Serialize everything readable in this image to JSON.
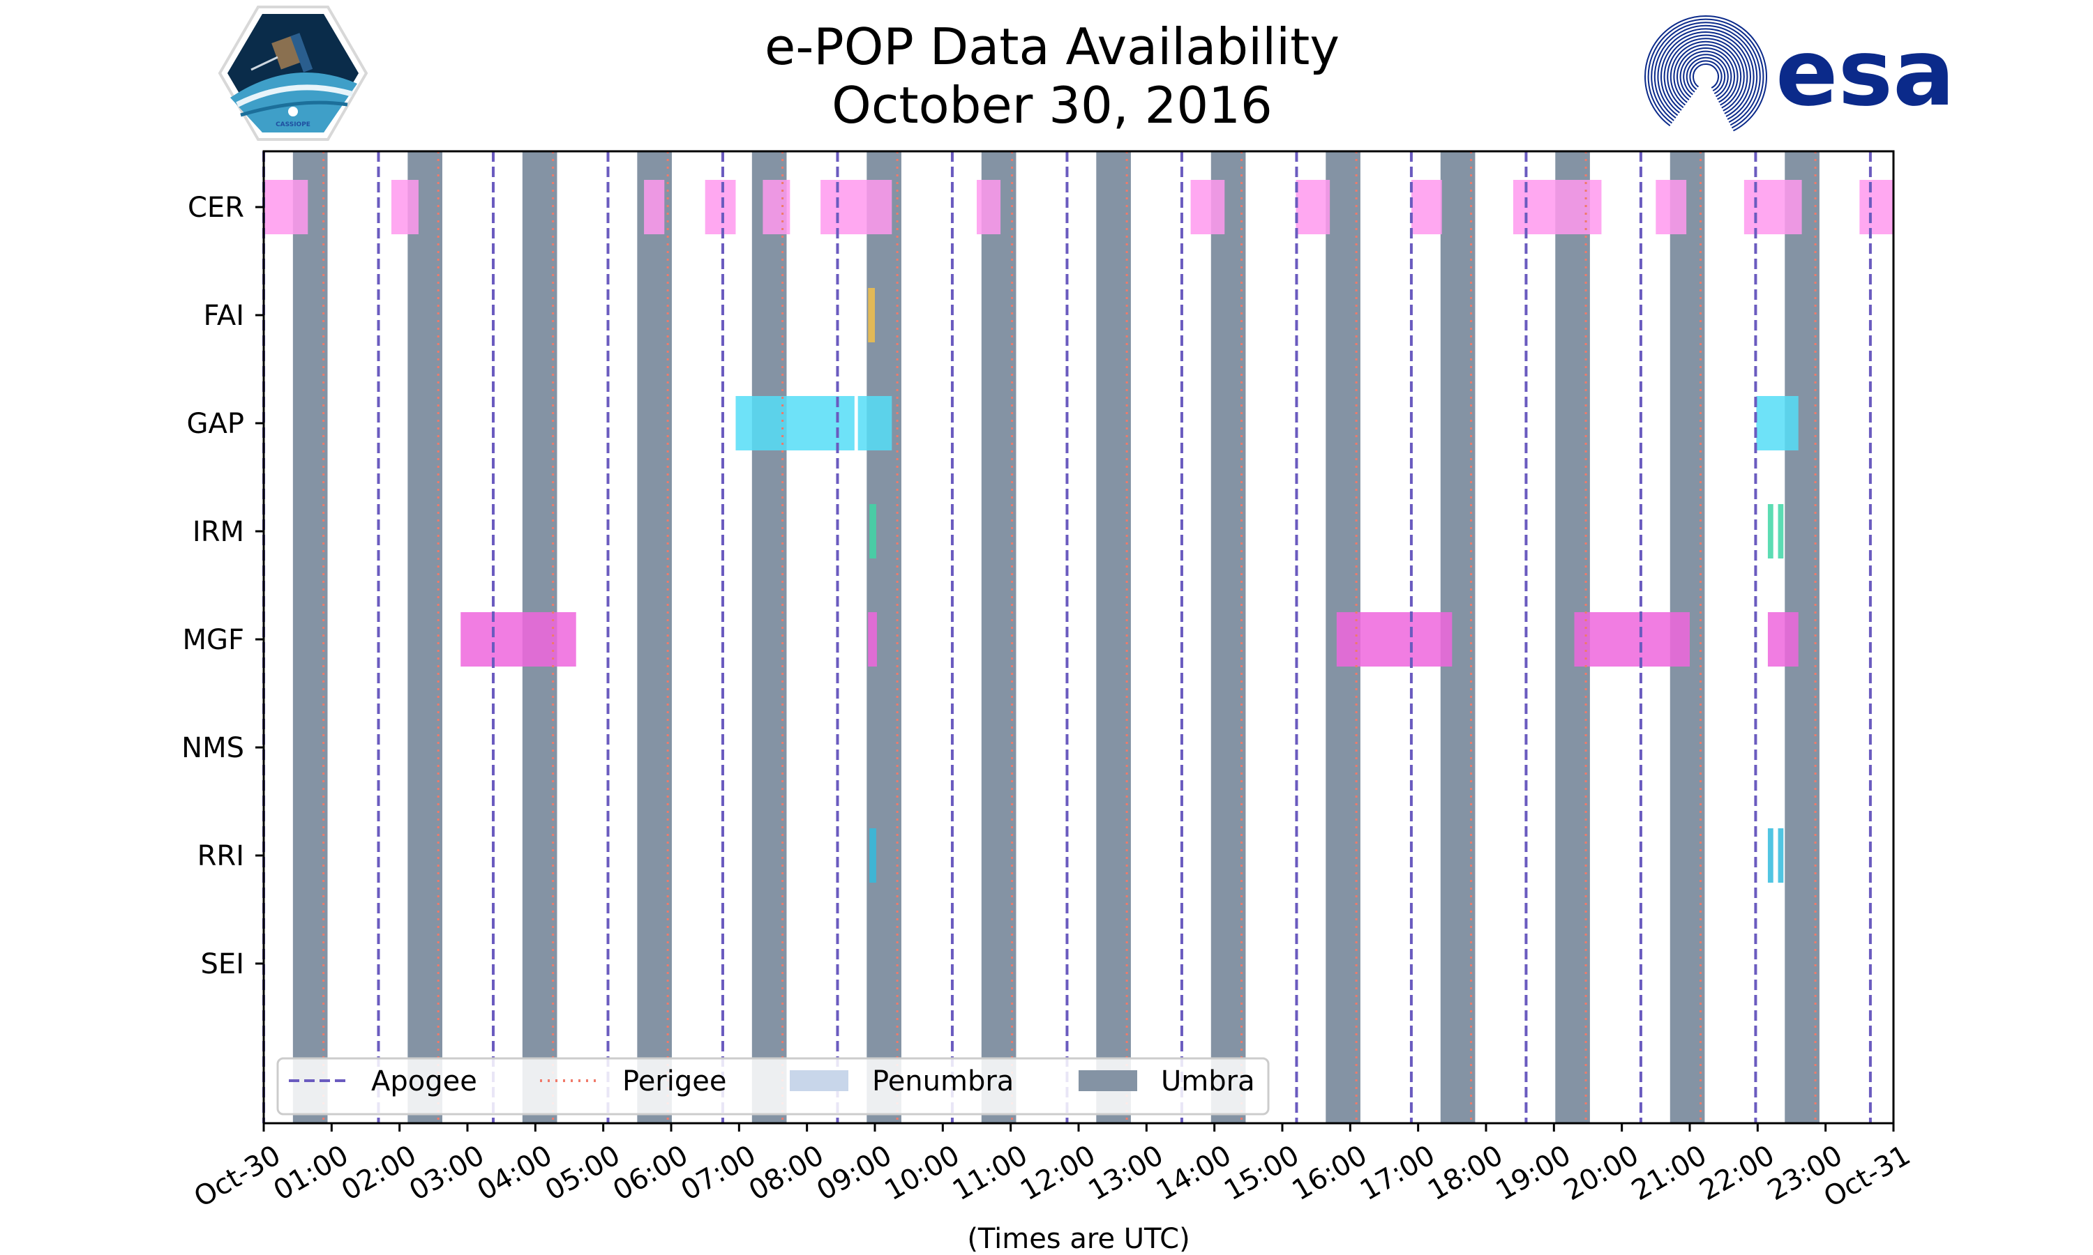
{
  "chart_data": {
    "type": "timeline",
    "title": "e-POP Data Availability",
    "subtitle": "October 30, 2016",
    "xlabel": "(Times are UTC)",
    "x_range_hours": [
      0,
      24
    ],
    "x_ticks": [
      "Oct-30",
      "01:00",
      "02:00",
      "03:00",
      "04:00",
      "05:00",
      "06:00",
      "07:00",
      "08:00",
      "09:00",
      "10:00",
      "11:00",
      "12:00",
      "13:00",
      "14:00",
      "15:00",
      "16:00",
      "17:00",
      "18:00",
      "19:00",
      "20:00",
      "21:00",
      "22:00",
      "23:00",
      "Oct-31"
    ],
    "instruments": [
      "CER",
      "FAI",
      "GAP",
      "IRM",
      "MGF",
      "NMS",
      "RRI",
      "SEI"
    ],
    "apogee_hours": [
      0.0,
      1.69,
      3.38,
      5.07,
      6.76,
      8.45,
      10.14,
      11.83,
      13.52,
      15.21,
      16.9,
      18.59,
      20.28,
      21.97,
      23.66
    ],
    "perigee_hours": [
      0.88,
      2.57,
      4.26,
      5.95,
      7.64,
      9.33,
      11.02,
      12.71,
      14.4,
      16.09,
      17.78,
      19.47,
      21.16,
      22.85
    ],
    "umbra_intervals": [
      [
        0.43,
        0.94
      ],
      [
        2.12,
        2.63
      ],
      [
        3.81,
        4.32
      ],
      [
        5.5,
        6.01
      ],
      [
        7.19,
        7.7
      ],
      [
        8.88,
        9.39
      ],
      [
        10.57,
        11.08
      ],
      [
        12.26,
        12.77
      ],
      [
        13.95,
        14.46
      ],
      [
        15.64,
        16.15
      ],
      [
        17.33,
        17.84
      ],
      [
        19.02,
        19.53
      ],
      [
        20.71,
        21.22
      ],
      [
        22.4,
        22.91
      ]
    ],
    "series": [
      {
        "name": "CER",
        "color": "#ff99ee",
        "intervals": [
          [
            0.0,
            0.65
          ],
          [
            1.88,
            2.28
          ],
          [
            5.6,
            5.9
          ],
          [
            6.5,
            6.95
          ],
          [
            7.35,
            7.75
          ],
          [
            8.2,
            9.25
          ],
          [
            10.5,
            10.85
          ],
          [
            13.65,
            14.15
          ],
          [
            15.2,
            15.7
          ],
          [
            16.9,
            17.35
          ],
          [
            18.4,
            19.7
          ],
          [
            20.5,
            20.95
          ],
          [
            21.8,
            22.65
          ],
          [
            23.5,
            24.0
          ]
        ]
      },
      {
        "name": "FAI",
        "color": "#f2c04a",
        "intervals": [
          [
            8.9,
            9.0
          ]
        ]
      },
      {
        "name": "GAP",
        "color": "#55ddf7",
        "intervals": [
          [
            6.95,
            8.7
          ],
          [
            8.75,
            9.25
          ],
          [
            21.98,
            22.6
          ]
        ]
      },
      {
        "name": "IRM",
        "color": "#3fd6a6",
        "intervals": [
          [
            8.92,
            9.02
          ],
          [
            22.15,
            22.23
          ],
          [
            22.3,
            22.38
          ]
        ]
      },
      {
        "name": "MGF",
        "color": "#ee66dd",
        "intervals": [
          [
            2.9,
            4.6
          ],
          [
            8.9,
            9.03
          ],
          [
            15.8,
            17.5
          ],
          [
            19.3,
            21.0
          ],
          [
            22.15,
            22.6
          ]
        ]
      },
      {
        "name": "NMS",
        "color": "#999999",
        "intervals": []
      },
      {
        "name": "RRI",
        "color": "#33bbdd",
        "intervals": [
          [
            8.92,
            9.02
          ],
          [
            22.15,
            22.23
          ],
          [
            22.3,
            22.38
          ]
        ]
      },
      {
        "name": "SEI",
        "color": "#999999",
        "intervals": []
      }
    ],
    "legend": {
      "position": "lower-left",
      "entries": [
        {
          "label": "Apogee",
          "style": "dashed",
          "color": "#6a5bbf"
        },
        {
          "label": "Perigee",
          "style": "dotted",
          "color": "#f07a6a"
        },
        {
          "label": "Penumbra",
          "style": "patch",
          "color": "#c8d6ea"
        },
        {
          "label": "Umbra",
          "style": "patch",
          "color": "#8493a4"
        }
      ]
    },
    "colors": {
      "apogee": "#6a5bbf",
      "perigee": "#f07a6a",
      "umbra": "#8493a4",
      "penumbra": "#c8d6ea"
    }
  },
  "logos": {
    "left": {
      "name": "CASSIOPE",
      "text": "CASSIOPE"
    },
    "right": {
      "name": "esa",
      "text": "esa"
    }
  }
}
